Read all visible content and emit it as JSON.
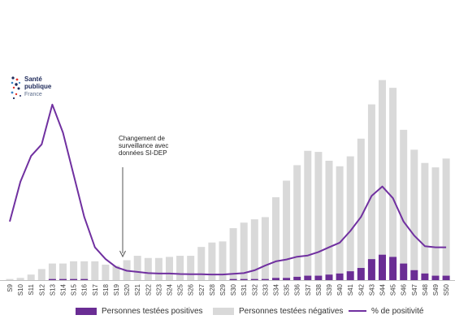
{
  "logo": {
    "line1": "Santé",
    "line2": "publique",
    "line3": "France"
  },
  "annotation": {
    "text": "Changement de surveillance avec données SI-DEP"
  },
  "colors": {
    "positive": "#6a2d94",
    "negative": "#d9d9d9",
    "positivity_line": "#7030a0"
  },
  "chart_data": {
    "type": "bar",
    "categories": [
      "S9",
      "S10",
      "S11",
      "S12",
      "S13",
      "S14",
      "S15",
      "S16",
      "S17",
      "S18",
      "S19",
      "S20",
      "S21",
      "S22",
      "S23",
      "S24",
      "S25",
      "S26",
      "S27",
      "S28",
      "S29",
      "S30",
      "S31",
      "S32",
      "S33",
      "S34",
      "S35",
      "S36",
      "S37",
      "S38",
      "S39",
      "S40",
      "S41",
      "S42",
      "S43",
      "S44",
      "S45",
      "S46",
      "S47",
      "S48",
      "S49",
      "S50"
    ],
    "series": [
      {
        "name": "Personnes testées positives",
        "kind": "bar",
        "stacked": true,
        "values": [
          0,
          0,
          0,
          0,
          1,
          1,
          1,
          1,
          0,
          0,
          0,
          0,
          0,
          0,
          0,
          0,
          0,
          0,
          0,
          0,
          0,
          1,
          1,
          1,
          1,
          2,
          2,
          3,
          4,
          4,
          5,
          6,
          8,
          11,
          19,
          23,
          21,
          15,
          9,
          6,
          4,
          4
        ]
      },
      {
        "name": "Personnes testées négatives",
        "kind": "bar",
        "stacked": true,
        "values": [
          1,
          2,
          5,
          10,
          14,
          14,
          16,
          16,
          17,
          14,
          13,
          18,
          22,
          20,
          20,
          21,
          22,
          22,
          30,
          34,
          35,
          46,
          51,
          54,
          56,
          73,
          88,
          101,
          113,
          112,
          103,
          97,
          104,
          117,
          140,
          158,
          153,
          121,
          109,
          100,
          98,
          106
        ]
      },
      {
        "name": "% de positivité",
        "kind": "line",
        "values": [
          0.25,
          0.42,
          0.53,
          0.58,
          0.75,
          0.63,
          0.45,
          0.27,
          0.14,
          0.09,
          0.055,
          0.04,
          0.035,
          0.03,
          0.028,
          0.028,
          0.026,
          0.025,
          0.025,
          0.024,
          0.024,
          0.027,
          0.03,
          0.042,
          0.062,
          0.08,
          0.088,
          0.1,
          0.105,
          0.12,
          0.14,
          0.16,
          0.21,
          0.27,
          0.36,
          0.4,
          0.35,
          0.25,
          0.19,
          0.145,
          0.14,
          0.14
        ]
      }
    ],
    "bar_ylim": [
      0,
      180
    ],
    "line_ylim": [
      0,
      0.85
    ],
    "grid": false,
    "legend_position": "bottom"
  }
}
